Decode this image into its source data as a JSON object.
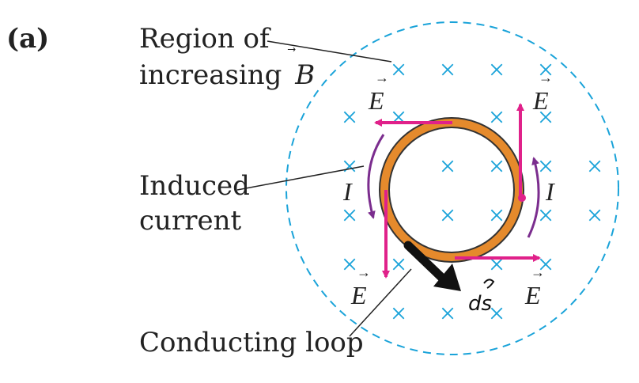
{
  "panel_label": "(a)",
  "labels": {
    "region_line1": "Region of",
    "region_line2": "increasing",
    "region_symbol": "B",
    "induced_line1": "Induced",
    "induced_line2": "current",
    "conducting_loop": "Conducting loop"
  },
  "field_symbol": "E",
  "current_symbol": "I",
  "handwritten_symbol": "ds",
  "colors": {
    "field_marks": "#1aa3d9",
    "dashed_region": "#1aa3d9",
    "e_field_arrows": "#e0218a",
    "current_arrows": "#7b2d8e",
    "loop": "#e58a2c",
    "loop_edge": "#333333",
    "text": "#222222",
    "handwriting": "#111111"
  }
}
